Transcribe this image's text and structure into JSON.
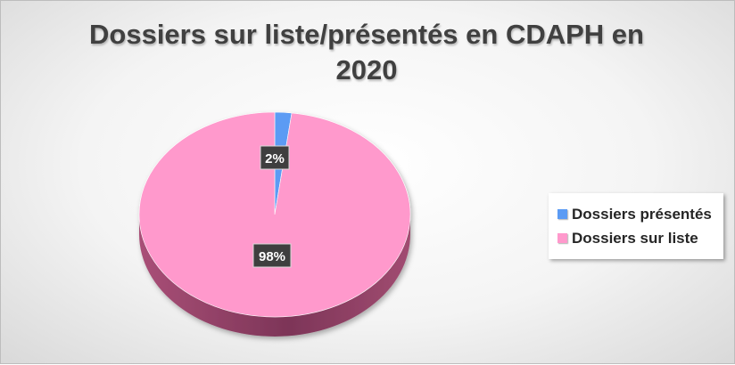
{
  "chart_data": {
    "type": "pie",
    "title": "Dossiers sur liste/présentés en CDAPH en 2020",
    "categories": [
      "Dossiers présentés",
      "Dossiers sur liste"
    ],
    "values": [
      2,
      98
    ],
    "data_labels": [
      "2%",
      "98%"
    ],
    "colors": [
      "#5b9bf4",
      "#ff99cc"
    ],
    "legend_position": "right",
    "style": "3d"
  }
}
